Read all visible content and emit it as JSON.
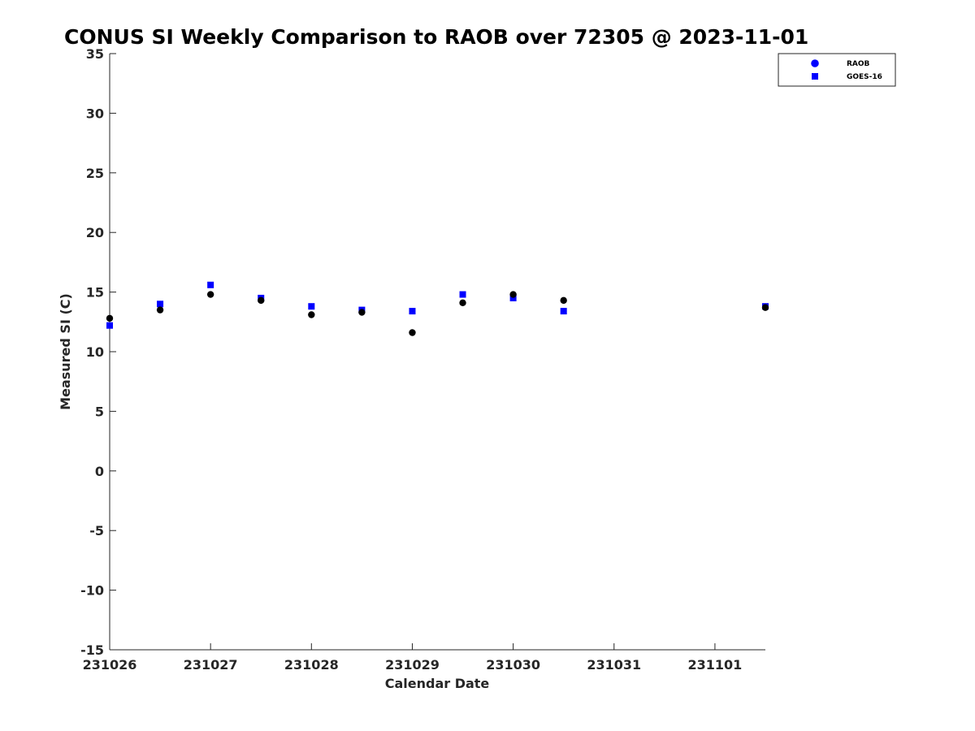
{
  "chart_data": {
    "type": "scatter",
    "title": "CONUS SI Weekly Comparison to RAOB over 72305 @ 2023-11-01",
    "xlabel": "Calendar Date",
    "ylabel": "Measured SI (C)",
    "x_ticks": [
      "231026",
      "231027",
      "231028",
      "231029",
      "231030",
      "231031",
      "231101"
    ],
    "xlim": [
      "231026",
      "231101 12Z"
    ],
    "ylim": [
      -15,
      35
    ],
    "y_ticks": [
      -15,
      -10,
      -5,
      0,
      5,
      10,
      15,
      20,
      25,
      30,
      35
    ],
    "grid": false,
    "legend_position": "top-right",
    "series": [
      {
        "name": "RAOB",
        "marker": "circle",
        "color": "#000000",
        "legend_color": "#0000ff",
        "points": [
          {
            "x": "231026 00Z",
            "y": 12.8
          },
          {
            "x": "231026 12Z",
            "y": 13.5
          },
          {
            "x": "231027 00Z",
            "y": 14.8
          },
          {
            "x": "231027 12Z",
            "y": 14.3
          },
          {
            "x": "231028 00Z",
            "y": 13.1
          },
          {
            "x": "231028 12Z",
            "y": 13.3
          },
          {
            "x": "231029 00Z",
            "y": 11.6
          },
          {
            "x": "231029 12Z",
            "y": 14.1
          },
          {
            "x": "231030 00Z",
            "y": 14.8
          },
          {
            "x": "231030 12Z",
            "y": 14.3
          },
          {
            "x": "231101 12Z",
            "y": 13.7
          }
        ]
      },
      {
        "name": "GOES-16",
        "marker": "square",
        "color": "#0000ff",
        "legend_color": "#0000ff",
        "points": [
          {
            "x": "231026 00Z",
            "y": 12.2
          },
          {
            "x": "231026 12Z",
            "y": 14.0
          },
          {
            "x": "231027 00Z",
            "y": 15.6
          },
          {
            "x": "231027 12Z",
            "y": 14.5
          },
          {
            "x": "231028 00Z",
            "y": 13.8
          },
          {
            "x": "231028 12Z",
            "y": 13.5
          },
          {
            "x": "231029 00Z",
            "y": 13.4
          },
          {
            "x": "231029 12Z",
            "y": 14.8
          },
          {
            "x": "231030 00Z",
            "y": 14.5
          },
          {
            "x": "231030 12Z",
            "y": 13.4
          },
          {
            "x": "231101 12Z",
            "y": 13.8
          }
        ]
      }
    ]
  }
}
